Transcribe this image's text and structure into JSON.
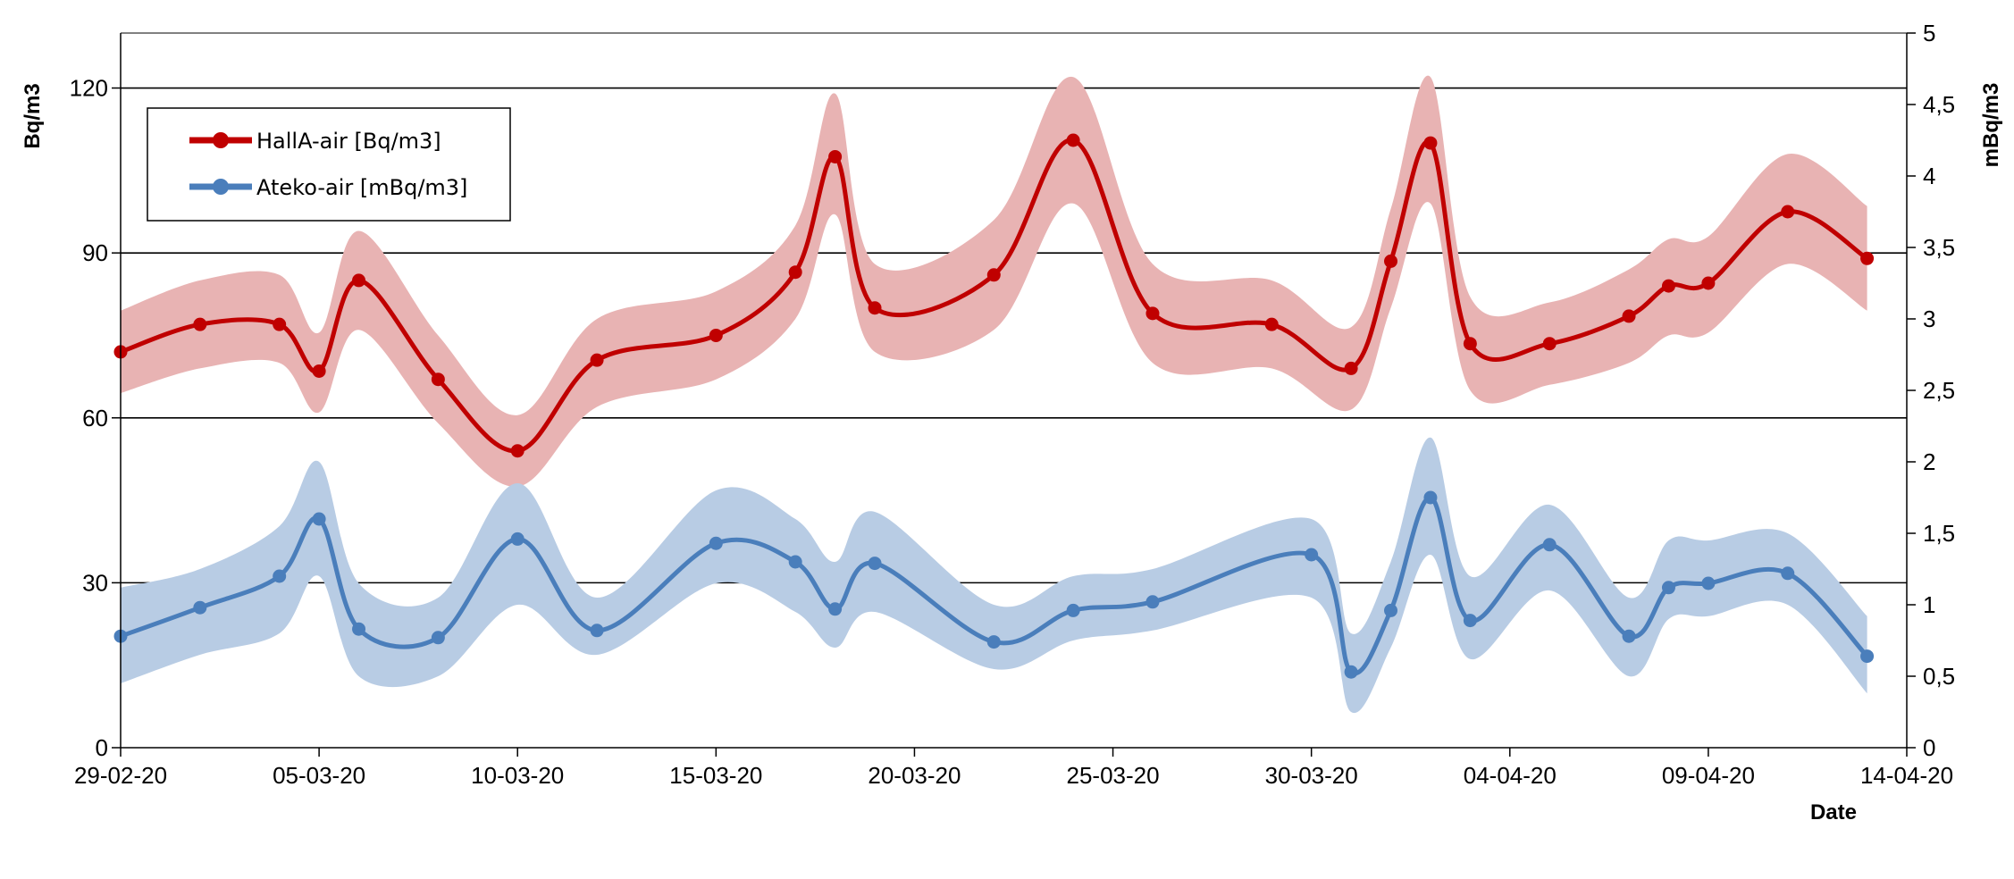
{
  "chart_data": {
    "type": "line",
    "title": "",
    "xlabel": "Date",
    "ylabel_left": "Bq/m3",
    "ylabel_right": "mBq/m3",
    "ylim_left": [
      0,
      130
    ],
    "ylim_right": [
      0,
      5
    ],
    "y_ticks_left": [
      "0",
      "30",
      "60",
      "90",
      "120"
    ],
    "y_ticks_right": [
      "0",
      "0,5",
      "1",
      "1,5",
      "2",
      "2,5",
      "3",
      "3,5",
      "4",
      "4,5",
      "5"
    ],
    "x_range": [
      "2020-02-29",
      "2020-04-14"
    ],
    "x_ticks": [
      "29-02-20",
      "05-03-20",
      "10-03-20",
      "15-03-20",
      "20-03-20",
      "25-03-20",
      "30-03-20",
      "04-04-20",
      "09-04-20",
      "14-04-20"
    ],
    "grid": "horizontal at left-axis ticks",
    "legend_position": "top-left",
    "series": [
      {
        "name": "HallA-air [Bq/m3]",
        "axis": "left",
        "color": "#c00000",
        "band_color": "#e8b3b3",
        "points": [
          [
            "2020-02-29",
            72
          ],
          [
            "2020-03-02",
            77
          ],
          [
            "2020-03-04",
            77
          ],
          [
            "2020-03-05",
            68.5
          ],
          [
            "2020-03-06",
            85
          ],
          [
            "2020-03-08",
            67
          ],
          [
            "2020-03-10",
            54
          ],
          [
            "2020-03-12",
            70.5
          ],
          [
            "2020-03-15",
            75
          ],
          [
            "2020-03-17",
            86.5
          ],
          [
            "2020-03-18",
            107.5
          ],
          [
            "2020-03-19",
            80
          ],
          [
            "2020-03-22",
            86
          ],
          [
            "2020-03-24",
            110.5
          ],
          [
            "2020-03-26",
            79
          ],
          [
            "2020-03-29",
            77
          ],
          [
            "2020-03-31",
            69
          ],
          [
            "2020-04-01",
            88.5
          ],
          [
            "2020-04-02",
            110
          ],
          [
            "2020-04-03",
            73.5
          ],
          [
            "2020-04-05",
            73.5
          ],
          [
            "2020-04-07",
            78.5
          ],
          [
            "2020-04-08",
            84
          ],
          [
            "2020-04-09",
            84.5
          ],
          [
            "2020-04-11",
            97.5
          ],
          [
            "2020-04-13",
            89
          ]
        ],
        "band": [
          [
            "2020-02-29",
            64.5,
            79.5
          ],
          [
            "2020-03-02",
            69,
            85
          ],
          [
            "2020-03-04",
            70,
            86
          ],
          [
            "2020-03-05",
            61,
            75.5
          ],
          [
            "2020-03-06",
            76,
            94
          ],
          [
            "2020-03-08",
            59,
            75
          ],
          [
            "2020-03-10",
            47.5,
            60.5
          ],
          [
            "2020-03-12",
            62,
            78
          ],
          [
            "2020-03-15",
            67,
            83
          ],
          [
            "2020-03-17",
            78,
            95
          ],
          [
            "2020-03-18",
            97,
            119
          ],
          [
            "2020-03-19",
            72,
            88
          ],
          [
            "2020-03-22",
            76,
            96
          ],
          [
            "2020-03-24",
            99,
            122
          ],
          [
            "2020-03-26",
            70,
            88
          ],
          [
            "2020-03-29",
            69,
            85
          ],
          [
            "2020-03-31",
            61.5,
            76.5
          ],
          [
            "2020-04-01",
            80,
            98
          ],
          [
            "2020-04-02",
            99,
            122
          ],
          [
            "2020-04-03",
            65,
            82
          ],
          [
            "2020-04-05",
            66,
            81
          ],
          [
            "2020-04-07",
            70,
            87
          ],
          [
            "2020-04-08",
            75,
            92.5
          ],
          [
            "2020-04-09",
            75.5,
            93
          ],
          [
            "2020-04-11",
            88,
            108
          ],
          [
            "2020-04-13",
            79.5,
            98.5
          ]
        ]
      },
      {
        "name": "Ateko-air [mBq/m3]",
        "axis": "right",
        "color": "#4a7ebb",
        "band_color": "#b8cce4",
        "points": [
          [
            "2020-02-29",
            0.78
          ],
          [
            "2020-03-02",
            0.98
          ],
          [
            "2020-03-04",
            1.2
          ],
          [
            "2020-03-05",
            1.6
          ],
          [
            "2020-03-06",
            0.83
          ],
          [
            "2020-03-08",
            0.77
          ],
          [
            "2020-03-10",
            1.46
          ],
          [
            "2020-03-12",
            0.82
          ],
          [
            "2020-03-15",
            1.43
          ],
          [
            "2020-03-17",
            1.3
          ],
          [
            "2020-03-18",
            0.97
          ],
          [
            "2020-03-19",
            1.29
          ],
          [
            "2020-03-22",
            0.74
          ],
          [
            "2020-03-24",
            0.96
          ],
          [
            "2020-03-26",
            1.02
          ],
          [
            "2020-03-30",
            1.35
          ],
          [
            "2020-03-31",
            0.53
          ],
          [
            "2020-04-01",
            0.96
          ],
          [
            "2020-04-02",
            1.75
          ],
          [
            "2020-04-03",
            0.89
          ],
          [
            "2020-04-05",
            1.42
          ],
          [
            "2020-04-07",
            0.78
          ],
          [
            "2020-04-08",
            1.12
          ],
          [
            "2020-04-09",
            1.15
          ],
          [
            "2020-04-11",
            1.22
          ],
          [
            "2020-04-13",
            0.64
          ]
        ],
        "band": [
          [
            "2020-02-29",
            0.45,
            1.12
          ],
          [
            "2020-03-02",
            0.65,
            1.25
          ],
          [
            "2020-03-04",
            0.8,
            1.55
          ],
          [
            "2020-03-05",
            1.2,
            2.0
          ],
          [
            "2020-03-06",
            0.5,
            1.15
          ],
          [
            "2020-03-08",
            0.5,
            1.05
          ],
          [
            "2020-03-10",
            1.0,
            1.85
          ],
          [
            "2020-03-12",
            0.65,
            1.05
          ],
          [
            "2020-03-15",
            1.15,
            1.8
          ],
          [
            "2020-03-17",
            0.95,
            1.6
          ],
          [
            "2020-03-18",
            0.7,
            1.3
          ],
          [
            "2020-03-19",
            0.95,
            1.65
          ],
          [
            "2020-03-22",
            0.55,
            1.0
          ],
          [
            "2020-03-24",
            0.75,
            1.2
          ],
          [
            "2020-03-26",
            0.82,
            1.25
          ],
          [
            "2020-03-30",
            1.05,
            1.6
          ],
          [
            "2020-03-31",
            0.25,
            0.8
          ],
          [
            "2020-04-01",
            0.7,
            1.3
          ],
          [
            "2020-04-02",
            1.35,
            2.17
          ],
          [
            "2020-04-03",
            0.62,
            1.2
          ],
          [
            "2020-04-05",
            1.1,
            1.7
          ],
          [
            "2020-04-07",
            0.5,
            1.05
          ],
          [
            "2020-04-08",
            0.9,
            1.45
          ],
          [
            "2020-04-09",
            0.92,
            1.45
          ],
          [
            "2020-04-11",
            1.0,
            1.5
          ],
          [
            "2020-04-13",
            0.38,
            0.92
          ]
        ]
      }
    ]
  }
}
